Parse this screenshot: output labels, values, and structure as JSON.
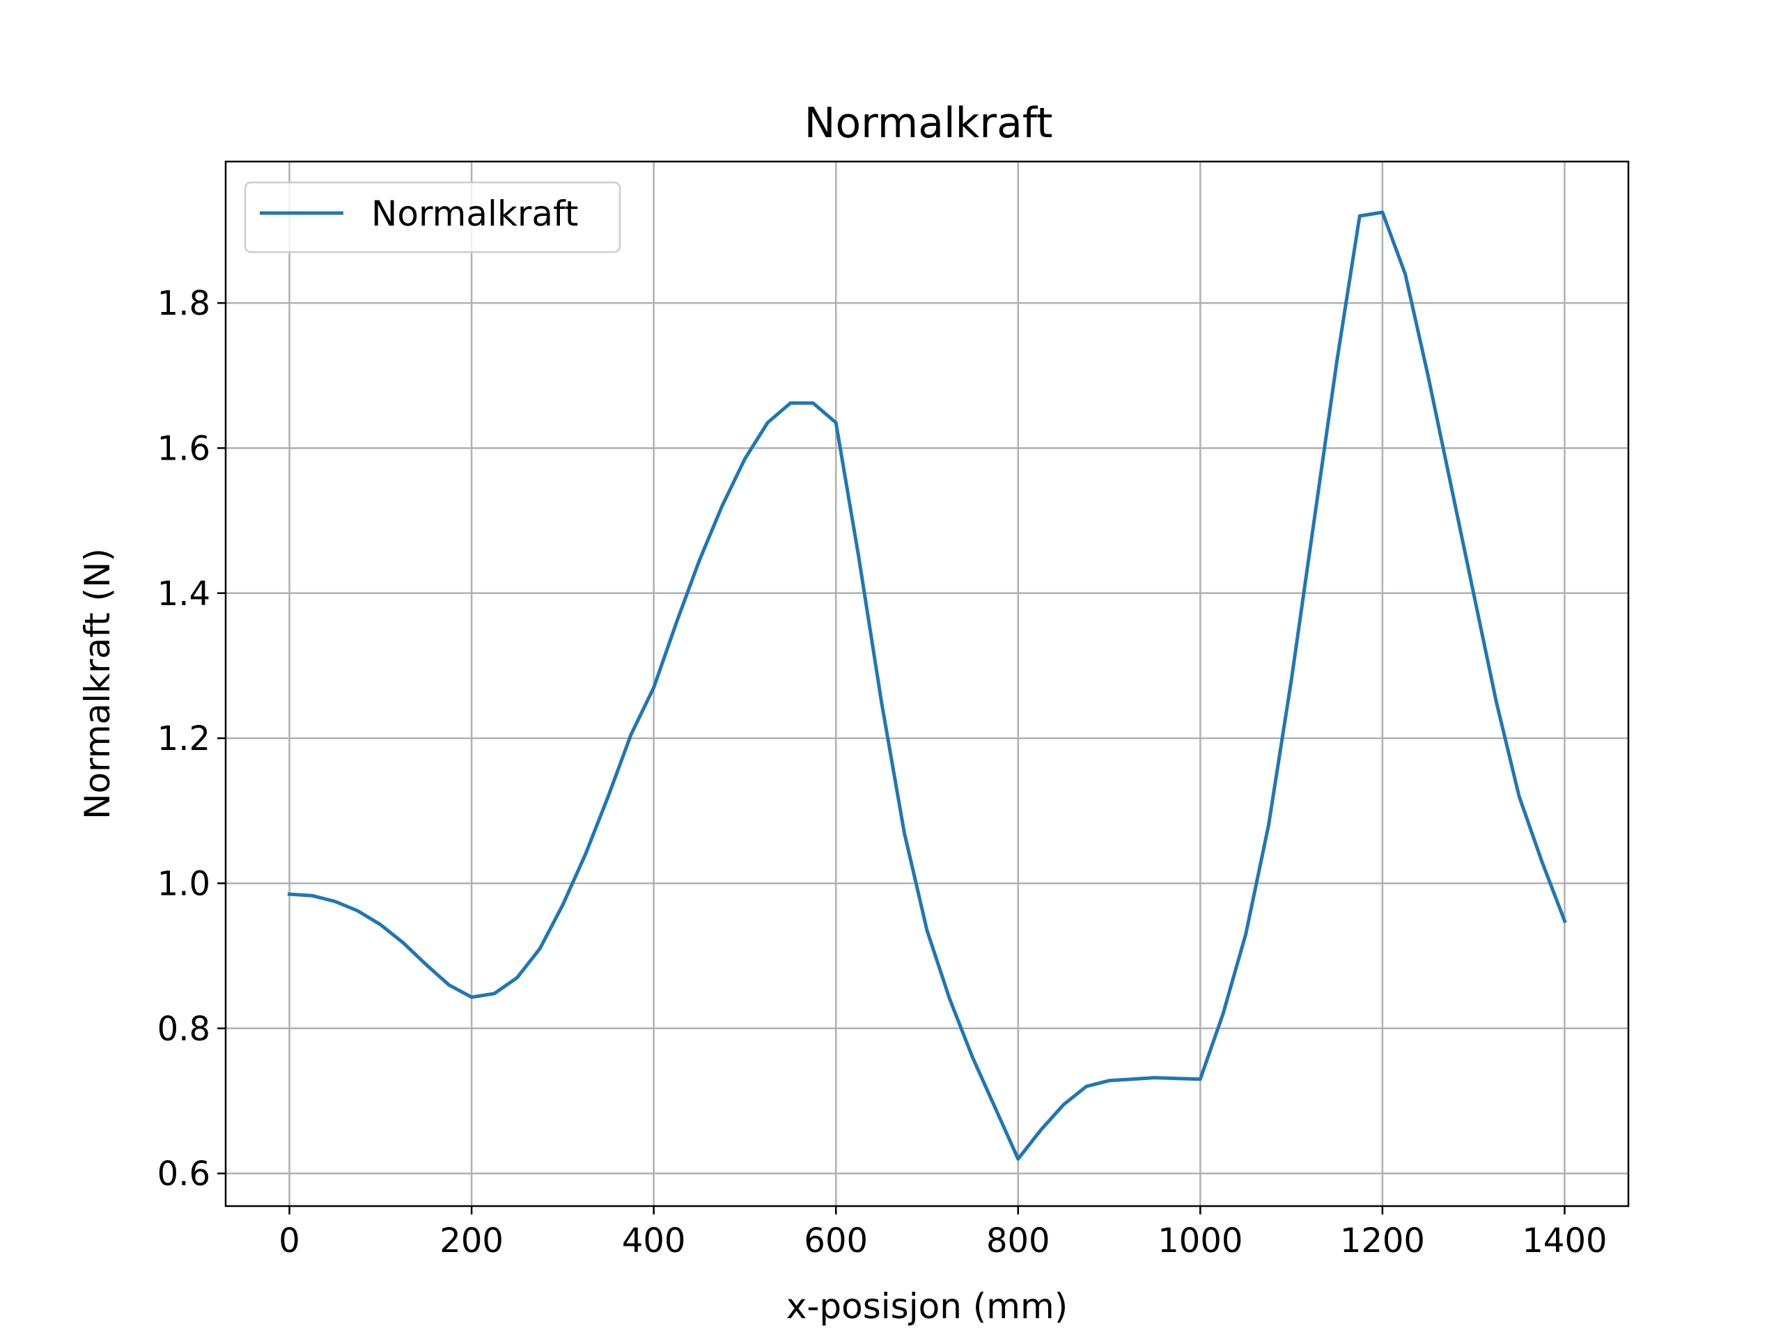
{
  "chart_data": {
    "type": "line",
    "title": "Normalkraft",
    "xlabel": "x-posisjon (mm)",
    "ylabel": "Normalkraft (N)",
    "xlim": [
      -70,
      1470
    ],
    "ylim": [
      0.555,
      1.995
    ],
    "xticks": [
      0,
      200,
      400,
      600,
      800,
      1000,
      1200,
      1400
    ],
    "xtick_labels": [
      "0",
      "200",
      "400",
      "600",
      "800",
      "1000",
      "1200",
      "1400"
    ],
    "yticks": [
      0.6,
      0.8,
      1.0,
      1.2,
      1.4,
      1.6,
      1.8
    ],
    "ytick_labels": [
      "0.6",
      "0.8",
      "1.0",
      "1.2",
      "1.4",
      "1.6",
      "1.8"
    ],
    "grid": true,
    "legend": {
      "position": "upper-left",
      "entries": [
        "Normalkraft"
      ]
    },
    "series": [
      {
        "name": "Normalkraft",
        "color": "#1f77b4",
        "x": [
          0,
          25,
          50,
          75,
          100,
          125,
          150,
          175,
          200,
          225,
          250,
          275,
          300,
          325,
          350,
          375,
          400,
          425,
          450,
          475,
          500,
          525,
          550,
          575,
          600,
          625,
          650,
          675,
          700,
          725,
          750,
          775,
          800,
          825,
          850,
          875,
          900,
          925,
          950,
          975,
          1000,
          1025,
          1050,
          1075,
          1100,
          1125,
          1150,
          1175,
          1200,
          1225,
          1250,
          1275,
          1300,
          1325,
          1350,
          1375,
          1400
        ],
        "y": [
          0.985,
          0.983,
          0.975,
          0.962,
          0.943,
          0.918,
          0.888,
          0.86,
          0.843,
          0.848,
          0.87,
          0.91,
          0.97,
          1.04,
          1.12,
          1.205,
          1.27,
          1.36,
          1.445,
          1.52,
          1.585,
          1.635,
          1.662,
          1.662,
          1.635,
          1.45,
          1.25,
          1.07,
          0.935,
          0.84,
          0.76,
          0.69,
          0.62,
          0.66,
          0.695,
          0.72,
          0.728,
          0.73,
          0.732,
          0.731,
          0.73,
          0.82,
          0.93,
          1.08,
          1.28,
          1.5,
          1.72,
          1.92,
          1.925,
          1.84,
          1.7,
          1.55,
          1.4,
          1.25,
          1.12,
          1.03,
          0.948
        ]
      }
    ]
  }
}
